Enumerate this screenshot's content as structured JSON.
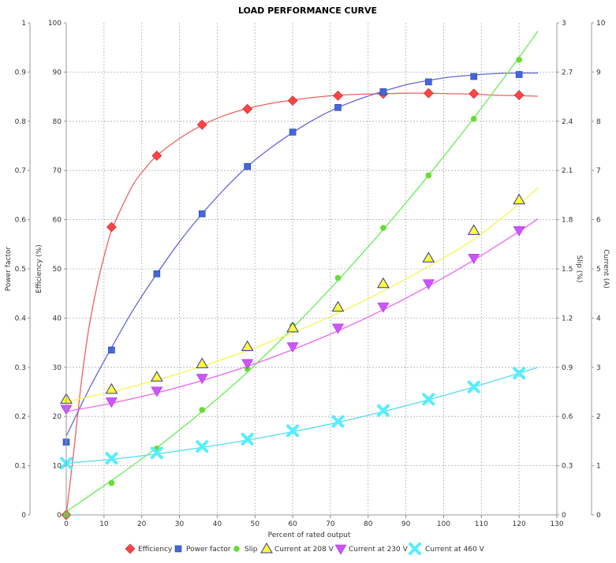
{
  "chart_data": {
    "type": "line",
    "title": "LOAD PERFORMANCE CURVE",
    "xlabel": "Percent of rated output",
    "xlim": [
      0,
      130
    ],
    "xticks": [
      0,
      10,
      20,
      30,
      40,
      50,
      60,
      70,
      80,
      90,
      100,
      110,
      120,
      130
    ],
    "grid": true,
    "legend_position": "bottom",
    "axes": [
      {
        "id": "pf",
        "label": "Power factor",
        "side": "left",
        "range": [
          0,
          1
        ],
        "ticks": [
          "0",
          "0.1",
          "0.2",
          "0.3",
          "0.4",
          "0.5",
          "0.6",
          "0.7",
          "0.8",
          "0.9",
          "1"
        ]
      },
      {
        "id": "eff",
        "label": "Efficiency (%)",
        "side": "left",
        "range": [
          0,
          100
        ],
        "ticks": [
          "0",
          "10",
          "20",
          "30",
          "40",
          "50",
          "60",
          "70",
          "80",
          "90",
          "100"
        ]
      },
      {
        "id": "slip",
        "label": "Slip (%)",
        "side": "right",
        "range": [
          0,
          3
        ],
        "ticks": [
          "0",
          "0.3",
          "0.6",
          "0.9",
          "1.2",
          "1.5",
          "1.8",
          "2.1",
          "2.4",
          "2.7",
          "3"
        ]
      },
      {
        "id": "cur",
        "label": "Current (A)",
        "side": "right",
        "range": [
          0,
          10
        ],
        "ticks": [
          "0",
          "1",
          "2",
          "3",
          "4",
          "5",
          "6",
          "7",
          "8",
          "9",
          "10"
        ]
      }
    ],
    "series": [
      {
        "name": "Efficiency",
        "axis": "eff",
        "color": "#ff4444",
        "line_color": "#f06060",
        "marker": "diamond",
        "points": [
          [
            0,
            0
          ],
          [
            12,
            58.5
          ],
          [
            24,
            73
          ],
          [
            36,
            79.3
          ],
          [
            48,
            82.5
          ],
          [
            60,
            84.2
          ],
          [
            72,
            85.2
          ],
          [
            84,
            85.6
          ],
          [
            96,
            85.7
          ],
          [
            108,
            85.6
          ],
          [
            120,
            85.3
          ]
        ],
        "curve": [
          [
            0,
            0
          ],
          [
            2,
            13
          ],
          [
            4,
            27
          ],
          [
            6,
            38
          ],
          [
            8,
            46
          ],
          [
            10,
            52.5
          ],
          [
            12,
            57.8
          ],
          [
            15,
            63
          ],
          [
            18,
            67.5
          ],
          [
            21,
            70.5
          ],
          [
            24,
            73
          ],
          [
            30,
            76.5
          ],
          [
            36,
            79.2
          ],
          [
            42,
            81.2
          ],
          [
            48,
            82.6
          ],
          [
            54,
            83.6
          ],
          [
            60,
            84.3
          ],
          [
            66,
            84.9
          ],
          [
            72,
            85.3
          ],
          [
            78,
            85.5
          ],
          [
            84,
            85.6
          ],
          [
            90,
            85.7
          ],
          [
            96,
            85.7
          ],
          [
            102,
            85.6
          ],
          [
            108,
            85.5
          ],
          [
            114,
            85.3
          ],
          [
            120,
            85.2
          ],
          [
            125,
            85.1
          ]
        ]
      },
      {
        "name": "Power factor",
        "axis": "pf",
        "color": "#4466dd",
        "line_color": "#6666dd",
        "marker": "square",
        "points": [
          [
            0,
            0.148
          ],
          [
            12,
            0.335
          ],
          [
            24,
            0.49
          ],
          [
            36,
            0.612
          ],
          [
            48,
            0.708
          ],
          [
            60,
            0.778
          ],
          [
            72,
            0.828
          ],
          [
            84,
            0.86
          ],
          [
            96,
            0.88
          ],
          [
            108,
            0.891
          ],
          [
            120,
            0.895
          ]
        ],
        "curve": [
          [
            0,
            0.16
          ],
          [
            6,
            0.255
          ],
          [
            12,
            0.34
          ],
          [
            18,
            0.42
          ],
          [
            24,
            0.49
          ],
          [
            30,
            0.555
          ],
          [
            36,
            0.612
          ],
          [
            42,
            0.663
          ],
          [
            48,
            0.708
          ],
          [
            54,
            0.745
          ],
          [
            60,
            0.777
          ],
          [
            66,
            0.805
          ],
          [
            72,
            0.828
          ],
          [
            78,
            0.846
          ],
          [
            84,
            0.861
          ],
          [
            90,
            0.874
          ],
          [
            96,
            0.883
          ],
          [
            102,
            0.89
          ],
          [
            108,
            0.894
          ],
          [
            114,
            0.897
          ],
          [
            120,
            0.898
          ],
          [
            125,
            0.898
          ]
        ]
      },
      {
        "name": "Slip",
        "axis": "slip",
        "color": "#66dd33",
        "line_color": "#66ee55",
        "marker": "circle",
        "points": [
          [
            0,
            0
          ],
          [
            12,
            0.195
          ],
          [
            24,
            0.405
          ],
          [
            36,
            0.64
          ],
          [
            48,
            0.89
          ],
          [
            60,
            1.155
          ],
          [
            72,
            1.445
          ],
          [
            84,
            1.75
          ],
          [
            96,
            2.07
          ],
          [
            108,
            2.415
          ],
          [
            120,
            2.775
          ]
        ],
        "curve": [
          [
            0,
            0.02
          ],
          [
            12,
            0.21
          ],
          [
            24,
            0.41
          ],
          [
            36,
            0.63
          ],
          [
            48,
            0.87
          ],
          [
            60,
            1.14
          ],
          [
            72,
            1.43
          ],
          [
            84,
            1.74
          ],
          [
            96,
            2.07
          ],
          [
            108,
            2.42
          ],
          [
            120,
            2.79
          ],
          [
            125,
            2.95
          ]
        ]
      },
      {
        "name": "Current at 208 V",
        "axis": "cur",
        "color": "#ffff33",
        "line_color": "#f5f555",
        "marker": "triangle-up",
        "points": [
          [
            0,
            2.35
          ],
          [
            12,
            2.55
          ],
          [
            24,
            2.8
          ],
          [
            36,
            3.07
          ],
          [
            48,
            3.42
          ],
          [
            60,
            3.8
          ],
          [
            72,
            4.22
          ],
          [
            84,
            4.7
          ],
          [
            96,
            5.22
          ],
          [
            108,
            5.78
          ],
          [
            120,
            6.4
          ]
        ],
        "curve": [
          [
            0,
            2.3
          ],
          [
            12,
            2.5
          ],
          [
            24,
            2.74
          ],
          [
            36,
            3.02
          ],
          [
            48,
            3.34
          ],
          [
            60,
            3.7
          ],
          [
            72,
            4.1
          ],
          [
            84,
            4.55
          ],
          [
            96,
            5.05
          ],
          [
            108,
            5.6
          ],
          [
            120,
            6.32
          ],
          [
            125,
            6.65
          ]
        ]
      },
      {
        "name": "Current at 230 V",
        "axis": "cur",
        "color": "#cc55ff",
        "line_color": "#ee66ee",
        "marker": "triangle-down",
        "points": [
          [
            0,
            2.15
          ],
          [
            12,
            2.3
          ],
          [
            24,
            2.52
          ],
          [
            36,
            2.78
          ],
          [
            48,
            3.08
          ],
          [
            60,
            3.42
          ],
          [
            72,
            3.8
          ],
          [
            84,
            4.23
          ],
          [
            96,
            4.7
          ],
          [
            108,
            5.22
          ],
          [
            120,
            5.78
          ]
        ],
        "curve": [
          [
            0,
            2.1
          ],
          [
            12,
            2.27
          ],
          [
            24,
            2.48
          ],
          [
            36,
            2.73
          ],
          [
            48,
            3.02
          ],
          [
            60,
            3.36
          ],
          [
            72,
            3.74
          ],
          [
            84,
            4.17
          ],
          [
            96,
            4.65
          ],
          [
            108,
            5.18
          ],
          [
            120,
            5.76
          ],
          [
            125,
            6.02
          ]
        ]
      },
      {
        "name": "Current at 460 V",
        "axis": "cur",
        "color": "#55eeff",
        "line_color": "#55ddee",
        "marker": "x",
        "points": [
          [
            0,
            1.05
          ],
          [
            12,
            1.15
          ],
          [
            24,
            1.26
          ],
          [
            36,
            1.39
          ],
          [
            48,
            1.54
          ],
          [
            60,
            1.71
          ],
          [
            72,
            1.9
          ],
          [
            84,
            2.12
          ],
          [
            96,
            2.35
          ],
          [
            108,
            2.6
          ],
          [
            120,
            2.88
          ]
        ],
        "curve": [
          [
            0,
            1.05
          ],
          [
            12,
            1.13
          ],
          [
            24,
            1.24
          ],
          [
            36,
            1.37
          ],
          [
            48,
            1.52
          ],
          [
            60,
            1.69
          ],
          [
            72,
            1.88
          ],
          [
            84,
            2.1
          ],
          [
            96,
            2.34
          ],
          [
            108,
            2.6
          ],
          [
            120,
            2.88
          ],
          [
            125,
            3.0
          ]
        ]
      }
    ]
  }
}
